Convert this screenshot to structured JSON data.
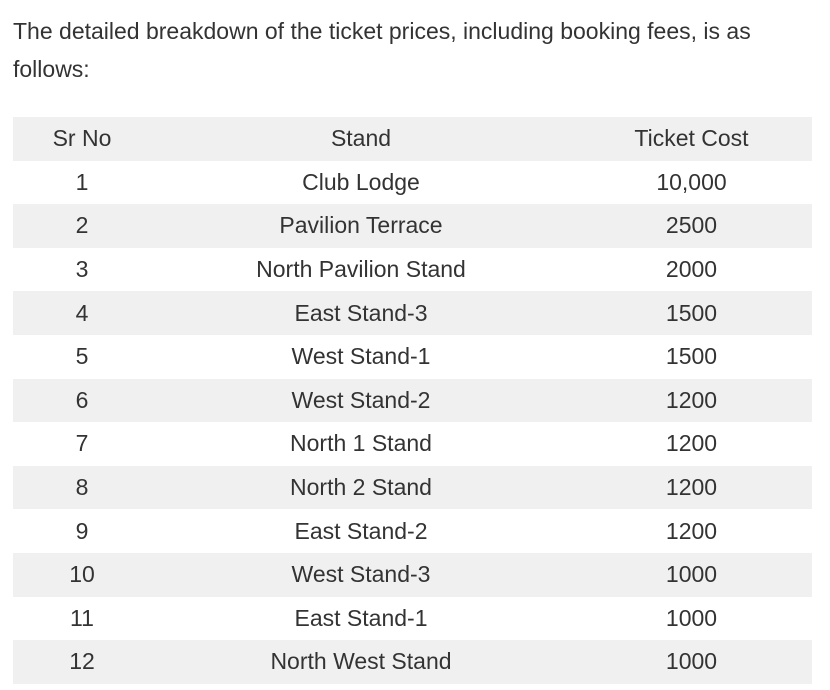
{
  "intro_text": "The detailed breakdown of the ticket prices, including booking fees, is as follows:",
  "table": {
    "headers": [
      "Sr No",
      "Stand",
      "Ticket Cost"
    ],
    "rows": [
      [
        "1",
        "Club Lodge",
        "10,000"
      ],
      [
        "2",
        "Pavilion Terrace",
        "2500"
      ],
      [
        "3",
        "North Pavilion Stand",
        "2000"
      ],
      [
        "4",
        "East Stand-3",
        "1500"
      ],
      [
        "5",
        "West Stand-1",
        "1500"
      ],
      [
        "6",
        "West Stand-2",
        "1200"
      ],
      [
        "7",
        "North 1 Stand",
        "1200"
      ],
      [
        "8",
        "North 2 Stand",
        "1200"
      ],
      [
        "9",
        "East Stand-2",
        "1200"
      ],
      [
        "10",
        "West Stand-3",
        "1000"
      ],
      [
        "11",
        "East Stand-1",
        "1000"
      ],
      [
        "12",
        "North West Stand",
        "1000"
      ]
    ]
  },
  "colors": {
    "text": "#333333",
    "stripe": "#f0f0f0",
    "background": "#ffffff"
  }
}
